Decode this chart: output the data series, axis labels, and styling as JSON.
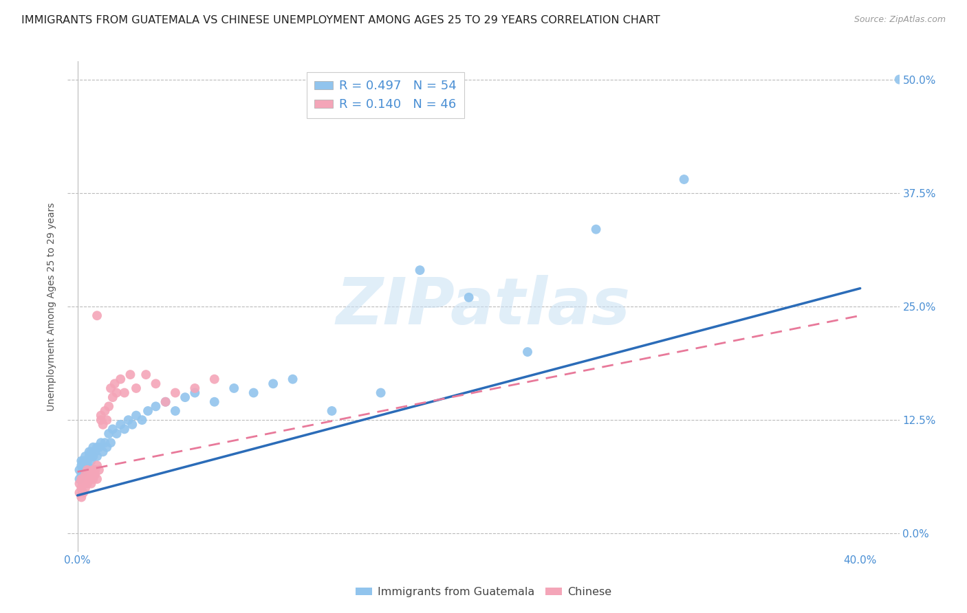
{
  "title": "IMMIGRANTS FROM GUATEMALA VS CHINESE UNEMPLOYMENT AMONG AGES 25 TO 29 YEARS CORRELATION CHART",
  "source": "Source: ZipAtlas.com",
  "xlabel_ticks": [
    "0.0%",
    "",
    "",
    "",
    "40.0%"
  ],
  "xlabel_tick_vals": [
    0.0,
    0.1,
    0.2,
    0.3,
    0.4
  ],
  "ylabel": "Unemployment Among Ages 25 to 29 years",
  "ylabel_ticks": [
    "0.0%",
    "12.5%",
    "25.0%",
    "37.5%",
    "50.0%"
  ],
  "ylabel_tick_vals": [
    0.0,
    0.125,
    0.25,
    0.375,
    0.5
  ],
  "xlim": [
    -0.005,
    0.42
  ],
  "ylim": [
    -0.02,
    0.52
  ],
  "legend_entries": [
    {
      "label": "Immigrants from Guatemala",
      "R": "0.497",
      "N": "54",
      "color": "#91C4ED"
    },
    {
      "label": "Chinese",
      "R": "0.140",
      "N": "46",
      "color": "#F4A5B8"
    }
  ],
  "watermark": "ZIPatlas",
  "guatemala_scatter_x": [
    0.001,
    0.001,
    0.002,
    0.002,
    0.002,
    0.003,
    0.003,
    0.004,
    0.004,
    0.005,
    0.005,
    0.006,
    0.006,
    0.007,
    0.007,
    0.008,
    0.008,
    0.009,
    0.01,
    0.01,
    0.011,
    0.012,
    0.013,
    0.014,
    0.015,
    0.016,
    0.017,
    0.018,
    0.02,
    0.022,
    0.024,
    0.026,
    0.028,
    0.03,
    0.033,
    0.036,
    0.04,
    0.045,
    0.05,
    0.055,
    0.06,
    0.07,
    0.08,
    0.09,
    0.1,
    0.11,
    0.13,
    0.155,
    0.175,
    0.2,
    0.23,
    0.265,
    0.31,
    0.42
  ],
  "guatemala_scatter_y": [
    0.06,
    0.07,
    0.065,
    0.075,
    0.08,
    0.07,
    0.08,
    0.075,
    0.085,
    0.075,
    0.08,
    0.085,
    0.09,
    0.08,
    0.09,
    0.085,
    0.095,
    0.09,
    0.085,
    0.095,
    0.095,
    0.1,
    0.09,
    0.1,
    0.095,
    0.11,
    0.1,
    0.115,
    0.11,
    0.12,
    0.115,
    0.125,
    0.12,
    0.13,
    0.125,
    0.135,
    0.14,
    0.145,
    0.135,
    0.15,
    0.155,
    0.145,
    0.16,
    0.155,
    0.165,
    0.17,
    0.135,
    0.155,
    0.29,
    0.26,
    0.2,
    0.335,
    0.39,
    0.5
  ],
  "chinese_scatter_x": [
    0.001,
    0.001,
    0.002,
    0.002,
    0.002,
    0.003,
    0.003,
    0.003,
    0.004,
    0.004,
    0.004,
    0.005,
    0.005,
    0.005,
    0.006,
    0.006,
    0.007,
    0.007,
    0.008,
    0.008,
    0.009,
    0.009,
    0.01,
    0.01,
    0.011,
    0.012,
    0.012,
    0.013,
    0.014,
    0.015,
    0.016,
    0.017,
    0.018,
    0.019,
    0.02,
    0.022,
    0.024,
    0.027,
    0.03,
    0.035,
    0.04,
    0.045,
    0.05,
    0.06,
    0.07,
    0.01
  ],
  "chinese_scatter_y": [
    0.045,
    0.055,
    0.04,
    0.05,
    0.06,
    0.045,
    0.055,
    0.06,
    0.05,
    0.06,
    0.065,
    0.055,
    0.06,
    0.07,
    0.06,
    0.065,
    0.055,
    0.065,
    0.06,
    0.07,
    0.065,
    0.07,
    0.06,
    0.075,
    0.07,
    0.125,
    0.13,
    0.12,
    0.135,
    0.125,
    0.14,
    0.16,
    0.15,
    0.165,
    0.155,
    0.17,
    0.155,
    0.175,
    0.16,
    0.175,
    0.165,
    0.145,
    0.155,
    0.16,
    0.17,
    0.24
  ],
  "guatemala_line_x": [
    0.0,
    0.4
  ],
  "guatemala_line_y": [
    0.042,
    0.27
  ],
  "chinese_line_x": [
    0.0,
    0.4
  ],
  "chinese_line_y": [
    0.068,
    0.24
  ],
  "guatemala_line_color": "#2B6CB8",
  "chinese_line_color": "#E8799A",
  "scatter_blue": "#91C4ED",
  "scatter_pink": "#F4A5B8",
  "grid_color": "#BBBBBB",
  "background_color": "#FFFFFF",
  "tick_label_color_blue": "#4A8FD4",
  "title_fontsize": 11.5,
  "axis_label_fontsize": 10,
  "tick_fontsize": 11
}
